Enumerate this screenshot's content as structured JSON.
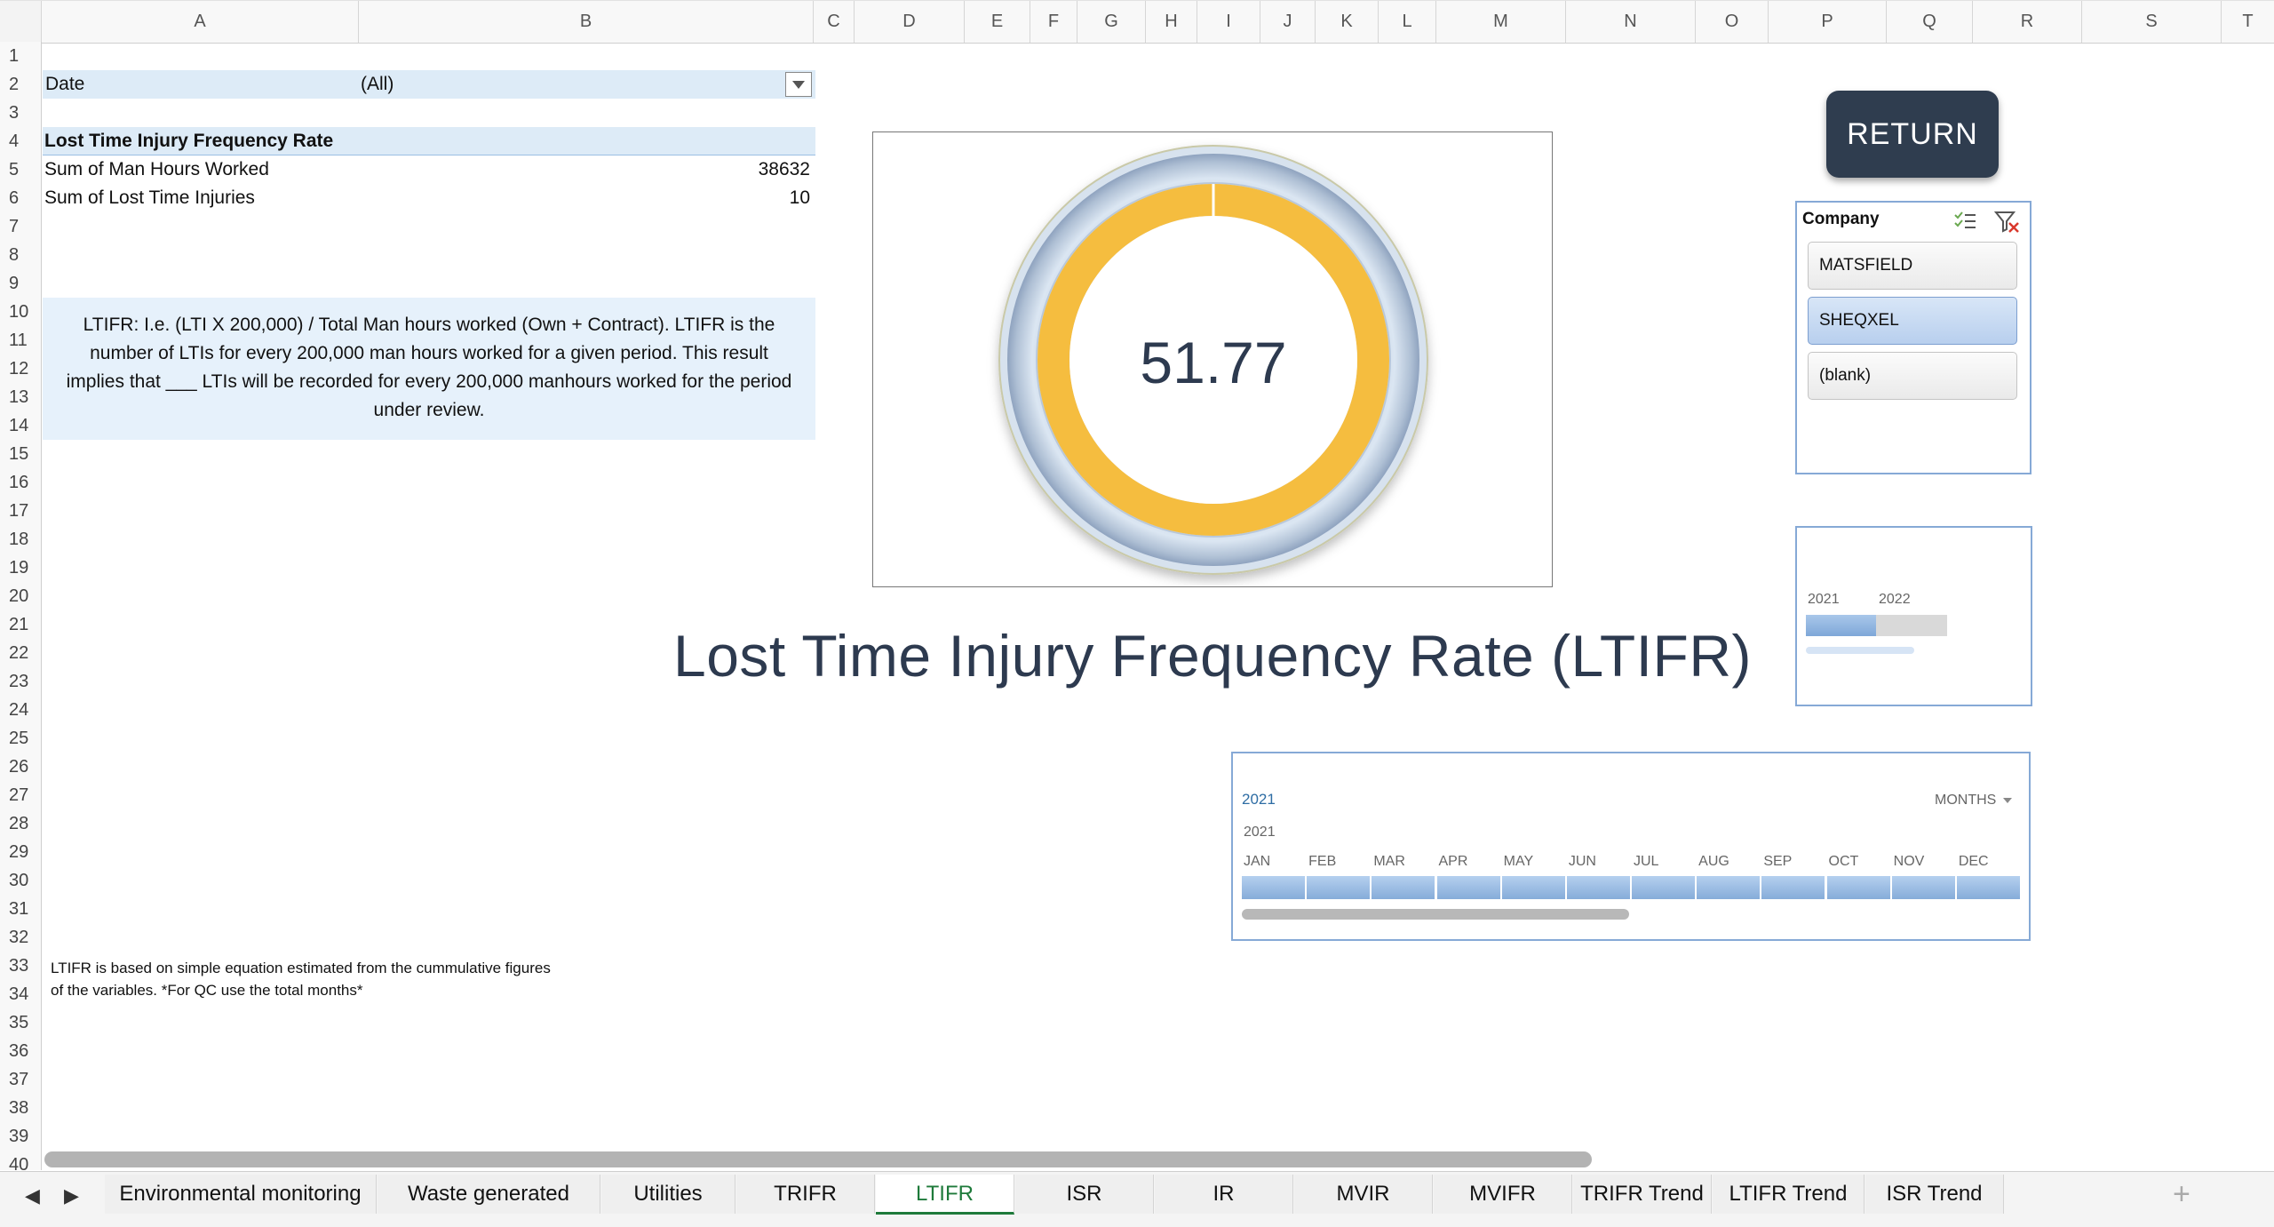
{
  "columns": [
    "A",
    "B",
    "C",
    "D",
    "E",
    "F",
    "G",
    "H",
    "I",
    "J",
    "K",
    "L",
    "M",
    "N",
    "O",
    "P",
    "Q",
    "R",
    "S",
    "T"
  ],
  "rows": [
    "1",
    "2",
    "3",
    "4",
    "5",
    "6",
    "7",
    "8",
    "9",
    "10",
    "11",
    "12",
    "13",
    "14",
    "15",
    "16",
    "17",
    "18",
    "19",
    "20",
    "21",
    "22",
    "23",
    "24",
    "25",
    "26",
    "27",
    "28",
    "29",
    "30",
    "31",
    "32",
    "33",
    "34",
    "35",
    "36",
    "37",
    "38",
    "39",
    "40"
  ],
  "filter": {
    "label": "Date",
    "value": "(All)"
  },
  "pivot": {
    "header": "Lost Time Injury Frequency Rate",
    "rows": [
      {
        "label": "Sum of Man Hours Worked",
        "value": "38632"
      },
      {
        "label": "Sum of Lost Time Injuries",
        "value": "10"
      }
    ]
  },
  "explanation": {
    "line1": "LTIFR: I.e. (LTI X 200,000) / Total Man hours worked (Own + Contract). LTIFR is the",
    "line2": "number of LTIs for every 200,000 man hours worked for a given period. This result",
    "line3": "implies that ___ LTIs will be recorded for every 200,000 manhours worked for the period",
    "line4": "under review."
  },
  "footnote": {
    "line1": "LTIFR is based on simple equation estimated from the cummulative figures",
    "line2": "of the variables. *For QC use the total months*"
  },
  "gauge": {
    "value": "51.77",
    "fill_color": "#f5bd3f",
    "fill_fraction": 1.0
  },
  "title": "Lost Time Injury Frequency Rate (LTIFR)",
  "return_button": "RETURN",
  "slicer": {
    "title": "Company",
    "items": [
      {
        "label": "MATSFIELD",
        "selected": false
      },
      {
        "label": "SHEQXEL",
        "selected": true
      },
      {
        "label": "(blank)",
        "selected": false
      }
    ]
  },
  "year_timeline": {
    "years": [
      "2021",
      "2022"
    ]
  },
  "month_timeline": {
    "selected_label": "2021",
    "level": "MONTHS",
    "year": "2021",
    "months": [
      "JAN",
      "FEB",
      "MAR",
      "APR",
      "MAY",
      "JUN",
      "JUL",
      "AUG",
      "SEP",
      "OCT",
      "NOV",
      "DEC"
    ]
  },
  "tabs": [
    {
      "label": "Environmental monitoring",
      "active": false
    },
    {
      "label": "Waste generated",
      "active": false
    },
    {
      "label": "Utilities",
      "active": false
    },
    {
      "label": "TRIFR",
      "active": false
    },
    {
      "label": "LTIFR",
      "active": true
    },
    {
      "label": "ISR",
      "active": false
    },
    {
      "label": "IR",
      "active": false
    },
    {
      "label": "MVIR",
      "active": false
    },
    {
      "label": "MVIFR",
      "active": false
    },
    {
      "label": "TRIFR Trend",
      "active": false
    },
    {
      "label": "LTIFR Trend",
      "active": false
    },
    {
      "label": "ISR Trend",
      "active": false
    }
  ],
  "add_tab": "+"
}
